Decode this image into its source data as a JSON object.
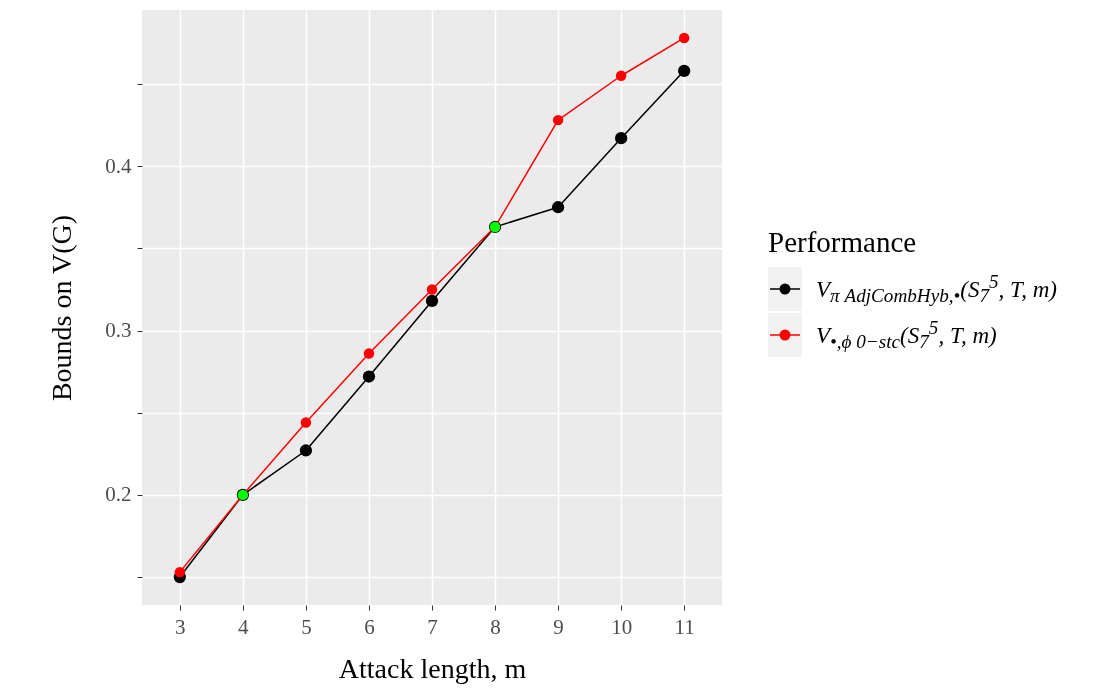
{
  "chart_data": {
    "type": "line",
    "xlabel": "Attack length, m",
    "ylabel": "Bounds on V(G)",
    "legend_title": "Performance",
    "x": [
      3,
      4,
      5,
      6,
      7,
      8,
      9,
      10,
      11
    ],
    "series": [
      {
        "name": "V$_{π AdjCombHyb,•}$(S$_{7}$$^{5}$, T, m)",
        "color": "#000000",
        "values": [
          0.15,
          0.2,
          0.227,
          0.272,
          0.318,
          0.363,
          0.375,
          0.417,
          0.458
        ]
      },
      {
        "name": "V$_{•,ϕ 0−stc}$(S$_{7}$$^{5}$, T, m)",
        "color": "#ff0000",
        "colors": [
          "#ff0000",
          "#00ff00",
          "#ff0000",
          "#ff0000",
          "#ff0000",
          "#00ff00",
          "#ff0000",
          "#ff0000",
          "#ff0000"
        ],
        "values": [
          0.153,
          0.2,
          0.244,
          0.286,
          0.325,
          0.363,
          0.428,
          0.455,
          0.478
        ]
      }
    ],
    "xlim": [
      2.4,
      11.6
    ],
    "xticks": [
      3,
      4,
      5,
      6,
      7,
      8,
      9,
      10,
      11
    ],
    "ylim": [
      0.133,
      0.495
    ],
    "yticks": [
      {
        "value": 0.15,
        "label": null
      },
      0.2,
      {
        "value": 0.25,
        "label": null
      },
      0.3,
      {
        "value": 0.35,
        "label": null
      },
      0.4,
      {
        "value": 0.45,
        "label": null
      }
    ],
    "grid": true,
    "legend": "right",
    "marker": "circle",
    "line_style": "solid"
  }
}
